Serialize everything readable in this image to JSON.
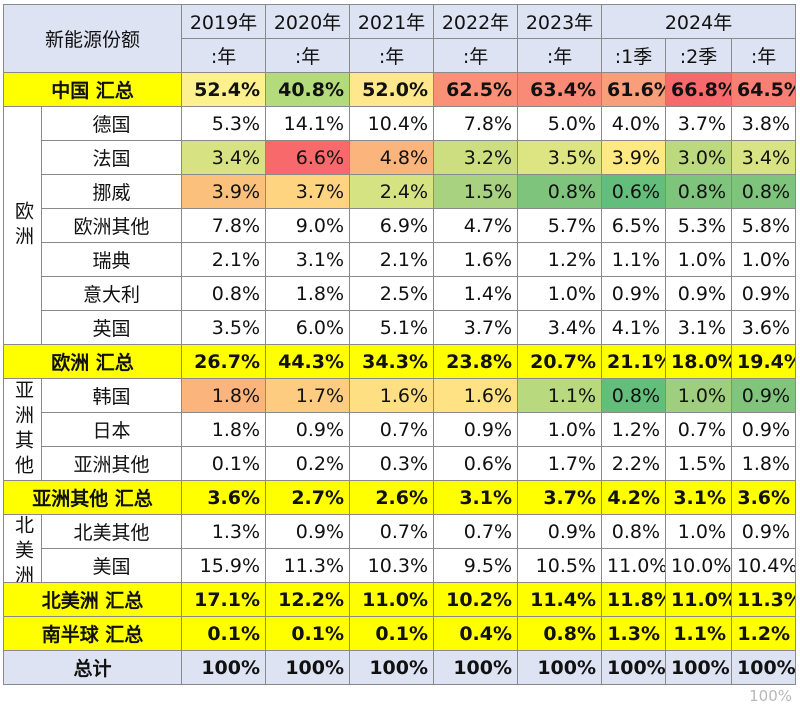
{
  "header": {
    "corner": "新能源份额",
    "years": [
      "2019年",
      "2020年",
      "2021年",
      "2022年",
      "2023年",
      "2024年"
    ],
    "periods": [
      ":年",
      ":年",
      ":年",
      ":年",
      ":年",
      ":1季",
      ":2季",
      ":年"
    ]
  },
  "rows": [
    {
      "kind": "sum",
      "label": "中国 汇总",
      "values": [
        "52.4%",
        "40.8%",
        "52.0%",
        "62.5%",
        "63.4%",
        "61.6%",
        "66.8%",
        "64.5%"
      ],
      "colors": [
        "#fdf08f",
        "#b3db7c",
        "#fee78c",
        "#f99077",
        "#f98a76",
        "#f99e7a",
        "#f8696b",
        "#f97e74"
      ]
    },
    {
      "kind": "data",
      "region_label": "欧洲",
      "region_span": 7,
      "label": "德国",
      "values": [
        "5.3%",
        "14.1%",
        "10.4%",
        "7.8%",
        "5.0%",
        "4.0%",
        "3.7%",
        "3.8%"
      ],
      "colors": []
    },
    {
      "kind": "data",
      "label": "法国",
      "values": [
        "3.4%",
        "6.6%",
        "4.8%",
        "3.2%",
        "3.5%",
        "3.9%",
        "3.0%",
        "3.4%"
      ],
      "colors": [
        "#d7e383",
        "#f8696b",
        "#fbb47c",
        "#ccde80",
        "#dde582",
        "#fee983",
        "#bcd97e",
        "#d8e384"
      ]
    },
    {
      "kind": "data",
      "label": "挪威",
      "values": [
        "3.9%",
        "3.7%",
        "2.4%",
        "1.5%",
        "0.8%",
        "0.6%",
        "0.8%",
        "0.8%"
      ],
      "colors": [
        "#fcc07d",
        "#fed481",
        "#d6e383",
        "#a8d27f",
        "#7fc47d",
        "#63be7b",
        "#7fc47d",
        "#7fc47d"
      ]
    },
    {
      "kind": "data",
      "label": "欧洲其他",
      "values": [
        "7.8%",
        "9.0%",
        "6.9%",
        "4.7%",
        "5.7%",
        "6.5%",
        "5.3%",
        "5.8%"
      ],
      "colors": []
    },
    {
      "kind": "data",
      "label": "瑞典",
      "values": [
        "2.1%",
        "3.1%",
        "2.1%",
        "1.6%",
        "1.2%",
        "1.1%",
        "1.0%",
        "1.0%"
      ],
      "colors": []
    },
    {
      "kind": "data",
      "label": "意大利",
      "values": [
        "0.8%",
        "1.8%",
        "2.5%",
        "1.4%",
        "1.0%",
        "0.9%",
        "0.9%",
        "0.9%"
      ],
      "colors": []
    },
    {
      "kind": "data",
      "label": "英国",
      "values": [
        "3.5%",
        "6.0%",
        "5.1%",
        "3.7%",
        "3.4%",
        "4.1%",
        "3.1%",
        "3.6%"
      ],
      "colors": []
    },
    {
      "kind": "sum",
      "label": "欧洲 汇总",
      "values": [
        "26.7%",
        "44.3%",
        "34.3%",
        "23.8%",
        "20.7%",
        "21.1%",
        "18.0%",
        "19.4%"
      ],
      "colors": []
    },
    {
      "kind": "data",
      "region_label": "亚洲其他",
      "region_span": 3,
      "label": "韩国",
      "values": [
        "1.8%",
        "1.7%",
        "1.6%",
        "1.6%",
        "1.1%",
        "0.8%",
        "1.0%",
        "0.9%"
      ],
      "colors": [
        "#fbb47b",
        "#fdcc80",
        "#fee083",
        "#fee283",
        "#b9d97f",
        "#63be7b",
        "#9fcf7e",
        "#81c57d"
      ]
    },
    {
      "kind": "data",
      "label": "日本",
      "values": [
        "1.8%",
        "0.9%",
        "0.7%",
        "0.9%",
        "1.0%",
        "1.2%",
        "0.7%",
        "0.9%"
      ],
      "colors": []
    },
    {
      "kind": "data",
      "label": "亚洲其他",
      "values": [
        "0.1%",
        "0.2%",
        "0.3%",
        "0.6%",
        "1.7%",
        "2.2%",
        "1.5%",
        "1.8%"
      ],
      "colors": []
    },
    {
      "kind": "sum",
      "label": "亚洲其他 汇总",
      "values": [
        "3.6%",
        "2.7%",
        "2.6%",
        "3.1%",
        "3.7%",
        "4.2%",
        "3.1%",
        "3.6%"
      ],
      "colors": []
    },
    {
      "kind": "data",
      "region_label": "北美洲",
      "region_span": 2,
      "label": "北美其他",
      "values": [
        "1.3%",
        "0.9%",
        "0.7%",
        "0.7%",
        "0.9%",
        "0.8%",
        "1.0%",
        "0.9%"
      ],
      "colors": []
    },
    {
      "kind": "data",
      "label": "美国",
      "values": [
        "15.9%",
        "11.3%",
        "10.3%",
        "9.5%",
        "10.5%",
        "11.0%",
        "10.0%",
        "10.4%"
      ],
      "colors": []
    },
    {
      "kind": "sum",
      "label": "北美洲 汇总",
      "values": [
        "17.1%",
        "12.2%",
        "11.0%",
        "10.2%",
        "11.4%",
        "11.8%",
        "11.0%",
        "11.3%"
      ],
      "colors": []
    },
    {
      "kind": "sum",
      "label": "南半球 汇总",
      "values": [
        "0.1%",
        "0.1%",
        "0.1%",
        "0.4%",
        "0.8%",
        "1.3%",
        "1.1%",
        "1.2%"
      ],
      "colors": []
    },
    {
      "kind": "total",
      "label": "总计",
      "values": [
        "100%",
        "100%",
        "100%",
        "100%",
        "100%",
        "100%",
        "100%",
        "100%"
      ],
      "colors": []
    }
  ],
  "watermark": "100%",
  "chart_data": {
    "type": "table",
    "title": "新能源份额",
    "columns": [
      "2019年:年",
      "2020年:年",
      "2021年:年",
      "2022年:年",
      "2023年:年",
      "2024年:1季",
      "2024年:2季",
      "2024年:年"
    ],
    "rows": [
      {
        "name": "中国 汇总",
        "values": [
          52.4,
          40.8,
          52.0,
          62.5,
          63.4,
          61.6,
          66.8,
          64.5
        ]
      },
      {
        "name": "德国",
        "values": [
          5.3,
          14.1,
          10.4,
          7.8,
          5.0,
          4.0,
          3.7,
          3.8
        ]
      },
      {
        "name": "法国",
        "values": [
          3.4,
          6.6,
          4.8,
          3.2,
          3.5,
          3.9,
          3.0,
          3.4
        ]
      },
      {
        "name": "挪威",
        "values": [
          3.9,
          3.7,
          2.4,
          1.5,
          0.8,
          0.6,
          0.8,
          0.8
        ]
      },
      {
        "name": "欧洲其他",
        "values": [
          7.8,
          9.0,
          6.9,
          4.7,
          5.7,
          6.5,
          5.3,
          5.8
        ]
      },
      {
        "name": "瑞典",
        "values": [
          2.1,
          3.1,
          2.1,
          1.6,
          1.2,
          1.1,
          1.0,
          1.0
        ]
      },
      {
        "name": "意大利",
        "values": [
          0.8,
          1.8,
          2.5,
          1.4,
          1.0,
          0.9,
          0.9,
          0.9
        ]
      },
      {
        "name": "英国",
        "values": [
          3.5,
          6.0,
          5.1,
          3.7,
          3.4,
          4.1,
          3.1,
          3.6
        ]
      },
      {
        "name": "欧洲 汇总",
        "values": [
          26.7,
          44.3,
          34.3,
          23.8,
          20.7,
          21.1,
          18.0,
          19.4
        ]
      },
      {
        "name": "韩国",
        "values": [
          1.8,
          1.7,
          1.6,
          1.6,
          1.1,
          0.8,
          1.0,
          0.9
        ]
      },
      {
        "name": "日本",
        "values": [
          1.8,
          0.9,
          0.7,
          0.9,
          1.0,
          1.2,
          0.7,
          0.9
        ]
      },
      {
        "name": "亚洲其他",
        "values": [
          0.1,
          0.2,
          0.3,
          0.6,
          1.7,
          2.2,
          1.5,
          1.8
        ]
      },
      {
        "name": "亚洲其他 汇总",
        "values": [
          3.6,
          2.7,
          2.6,
          3.1,
          3.7,
          4.2,
          3.1,
          3.6
        ]
      },
      {
        "name": "北美其他",
        "values": [
          1.3,
          0.9,
          0.7,
          0.7,
          0.9,
          0.8,
          1.0,
          0.9
        ]
      },
      {
        "name": "美国",
        "values": [
          15.9,
          11.3,
          10.3,
          9.5,
          10.5,
          11.0,
          10.0,
          10.4
        ]
      },
      {
        "name": "北美洲 汇总",
        "values": [
          17.1,
          12.2,
          11.0,
          10.2,
          11.4,
          11.8,
          11.0,
          11.3
        ]
      },
      {
        "name": "南半球 汇总",
        "values": [
          0.1,
          0.1,
          0.1,
          0.4,
          0.8,
          1.3,
          1.1,
          1.2
        ]
      },
      {
        "name": "总计",
        "values": [
          100,
          100,
          100,
          100,
          100,
          100,
          100,
          100
        ]
      }
    ]
  }
}
